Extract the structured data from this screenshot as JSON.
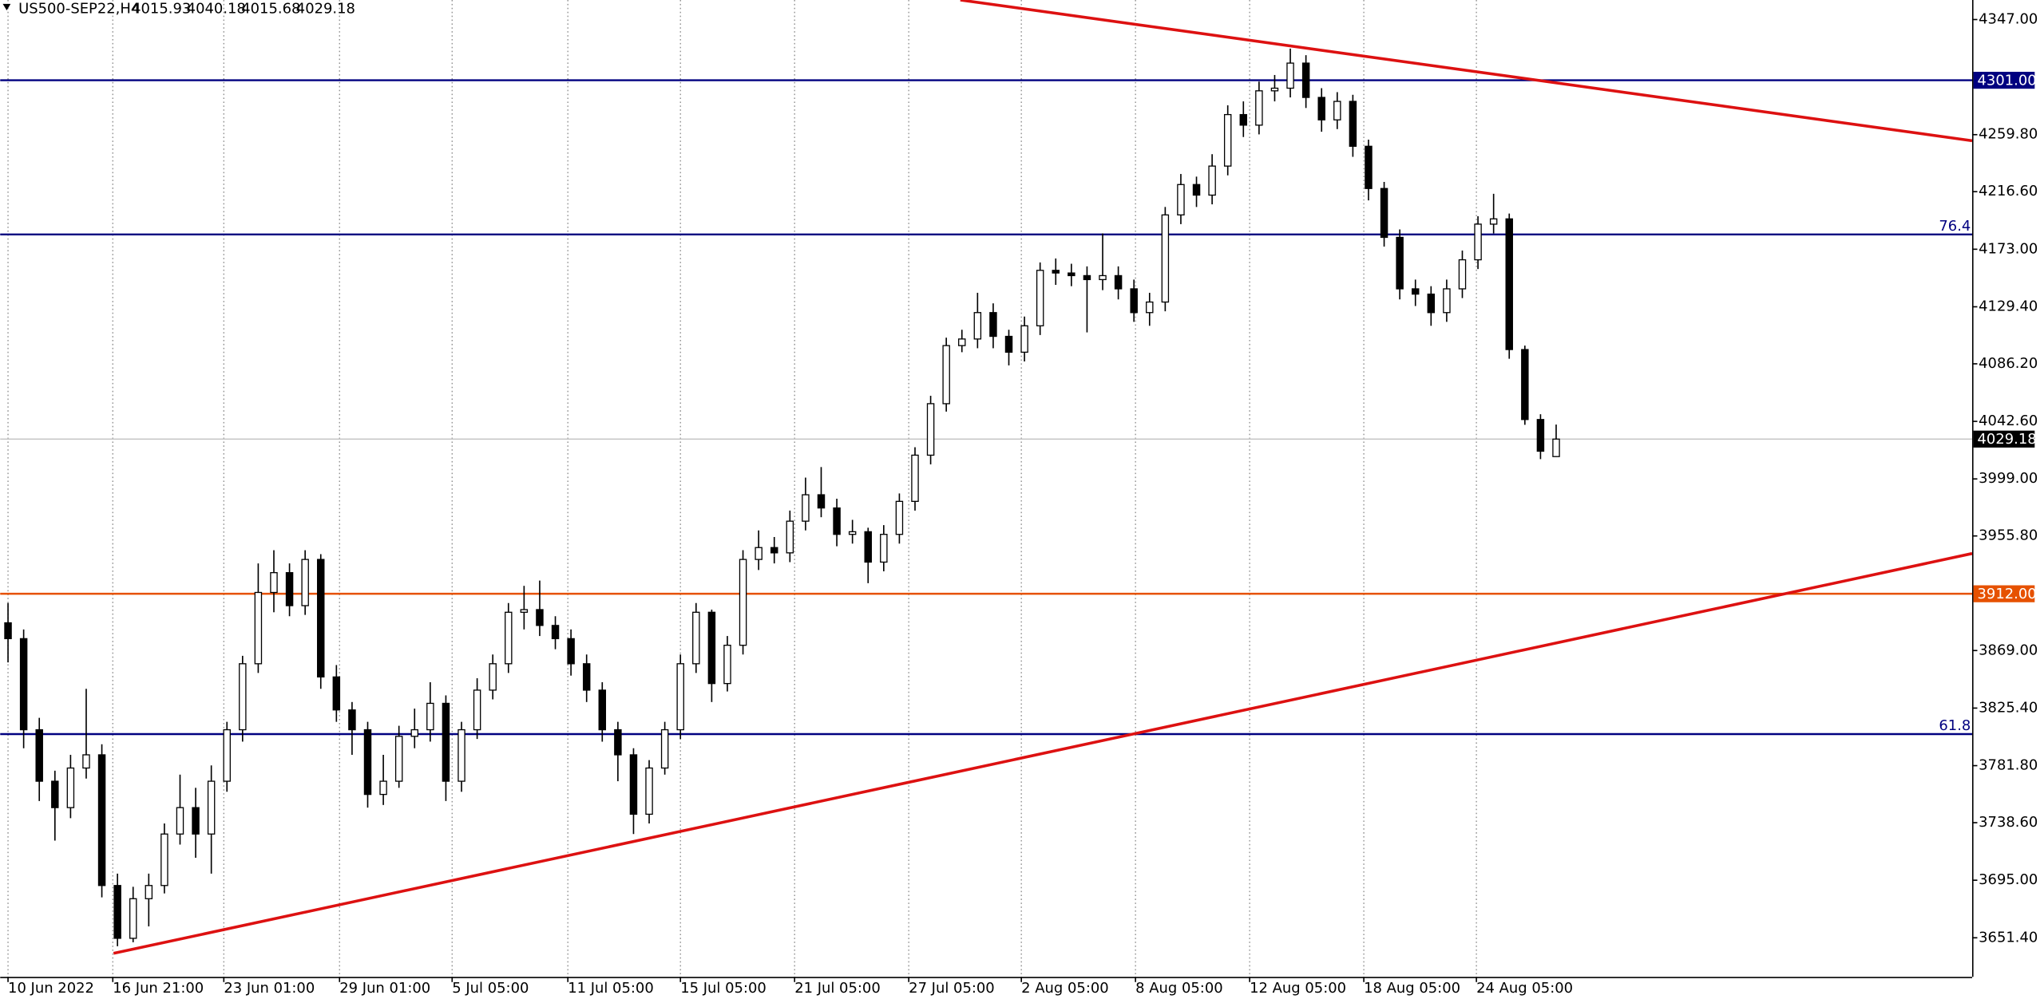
{
  "chart_data": {
    "type": "candlestick",
    "symbol": "US500-SEP22,H4",
    "open": [
      3890,
      3878,
      3809,
      3770,
      3750,
      3780,
      3790,
      3691,
      3651,
      3681,
      3691,
      3730,
      3750,
      3730,
      3770,
      3809,
      3859,
      3913,
      3928,
      3903,
      3938,
      3849,
      3824,
      3809,
      3760,
      3770,
      3804,
      3809,
      3829,
      3770,
      3809,
      3839,
      3859,
      3898,
      3900,
      3888,
      3878,
      3859,
      3839,
      3809,
      3790,
      3745,
      3780,
      3809,
      3859,
      3898,
      3844,
      3873,
      3938,
      3947,
      3943,
      3967,
      3987,
      3977,
      3957,
      3959,
      3936,
      3957,
      3982,
      4017,
      4056,
      4100,
      4105,
      4125,
      4107,
      4095,
      4115,
      4157,
      4155,
      4153,
      4150,
      4153,
      4143,
      4125,
      4133,
      4199,
      4222,
      4214,
      4236,
      4275,
      4267,
      4293,
      4295,
      4314,
      4288,
      4271,
      4285,
      4251,
      4219,
      4182,
      4143,
      4139,
      4125,
      4143,
      4165,
      4192,
      4196,
      4097,
      4044,
      4015.93
    ],
    "high": [
      3905,
      3885,
      3818,
      3778,
      3790,
      3840,
      3798,
      3700,
      3690,
      3700,
      3738,
      3775,
      3765,
      3782,
      3815,
      3865,
      3935,
      3945,
      3935,
      3945,
      3942,
      3858,
      3830,
      3815,
      3790,
      3812,
      3825,
      3845,
      3835,
      3815,
      3848,
      3866,
      3905,
      3918,
      3922,
      3895,
      3885,
      3866,
      3845,
      3815,
      3795,
      3786,
      3815,
      3866,
      3905,
      3900,
      3880,
      3945,
      3960,
      3955,
      3975,
      4000,
      4008,
      3984,
      3968,
      3962,
      3964,
      3988,
      4023,
      4062,
      4106,
      4112,
      4140,
      4132,
      4112,
      4122,
      4163,
      4166,
      4162,
      4160,
      4185,
      4160,
      4150,
      4140,
      4205,
      4230,
      4228,
      4245,
      4282,
      4285,
      4300,
      4305,
      4325,
      4320,
      4295,
      4292,
      4290,
      4256,
      4224,
      4188,
      4150,
      4145,
      4150,
      4172,
      4198,
      4215,
      4200,
      4100,
      4048,
      4040.18
    ],
    "low": [
      3860,
      3795,
      3755,
      3725,
      3742,
      3772,
      3682,
      3645,
      3648,
      3660,
      3685,
      3722,
      3712,
      3700,
      3762,
      3800,
      3852,
      3898,
      3895,
      3896,
      3840,
      3815,
      3790,
      3750,
      3752,
      3765,
      3795,
      3800,
      3755,
      3762,
      3802,
      3832,
      3852,
      3885,
      3880,
      3870,
      3850,
      3830,
      3800,
      3770,
      3730,
      3738,
      3775,
      3802,
      3852,
      3830,
      3838,
      3866,
      3930,
      3935,
      3936,
      3960,
      3970,
      3948,
      3950,
      3920,
      3929,
      3950,
      3975,
      4010,
      4050,
      4095,
      4098,
      4098,
      4085,
      4088,
      4108,
      4146,
      4145,
      4110,
      4142,
      4135,
      4118,
      4115,
      4126,
      4192,
      4205,
      4207,
      4229,
      4258,
      4260,
      4285,
      4288,
      4280,
      4262,
      4264,
      4243,
      4210,
      4175,
      4135,
      4130,
      4115,
      4118,
      4136,
      4158,
      4185,
      4090,
      4040,
      4014,
      4015.68
    ],
    "close": [
      3878,
      3809,
      3770,
      3750,
      3780,
      3790,
      3691,
      3651,
      3681,
      3691,
      3730,
      3750,
      3730,
      3770,
      3809,
      3859,
      3913,
      3928,
      3903,
      3938,
      3849,
      3824,
      3809,
      3760,
      3770,
      3804,
      3809,
      3829,
      3770,
      3809,
      3839,
      3859,
      3898,
      3900,
      3888,
      3878,
      3859,
      3839,
      3809,
      3790,
      3745,
      3780,
      3809,
      3859,
      3898,
      3844,
      3873,
      3938,
      3947,
      3943,
      3967,
      3987,
      3977,
      3957,
      3959,
      3936,
      3957,
      3982,
      4017,
      4056,
      4100,
      4105,
      4125,
      4107,
      4095,
      4115,
      4157,
      4155,
      4153,
      4150,
      4153,
      4143,
      4125,
      4133,
      4199,
      4222,
      4214,
      4236,
      4275,
      4267,
      4293,
      4295,
      4314,
      4288,
      4271,
      4285,
      4251,
      4219,
      4182,
      4143,
      4139,
      4125,
      4143,
      4165,
      4192,
      4196,
      4097,
      4044,
      4020,
      4029.18
    ],
    "xlim": [
      -0.5,
      125.6
    ],
    "xticks": [
      {
        "value": 0,
        "label": "10 Jun 2022"
      },
      {
        "value": 6.7,
        "label": "16 Jun 21:00"
      },
      {
        "value": 13.8,
        "label": "23 Jun 01:00"
      },
      {
        "value": 21.2,
        "label": "29 Jun 01:00"
      },
      {
        "value": 28.4,
        "label": "5 Jul 05:00"
      },
      {
        "value": 35.8,
        "label": "11 Jul 05:00"
      },
      {
        "value": 43,
        "label": "15 Jul 05:00"
      },
      {
        "value": 50.3,
        "label": "21 Jul 05:00"
      },
      {
        "value": 57.6,
        "label": "27 Jul 05:00"
      },
      {
        "value": 64.8,
        "label": "2 Aug 05:00"
      },
      {
        "value": 72.1,
        "label": "8 Aug 05:00"
      },
      {
        "value": 79.4,
        "label": "12 Aug 05:00"
      },
      {
        "value": 86.7,
        "label": "18 Aug 05:00"
      },
      {
        "value": 93.9,
        "label": "24 Aug 05:00"
      }
    ],
    "ylim": [
      3621.8,
      4361.8
    ],
    "yticks": [
      {
        "value": 4347,
        "label": "4347.00"
      },
      {
        "value": 4259.8,
        "label": "4259.80"
      },
      {
        "value": 4216.6,
        "label": "4216.60"
      },
      {
        "value": 4173,
        "label": "4173.00"
      },
      {
        "value": 4129.4,
        "label": "4129.40"
      },
      {
        "value": 4086.2,
        "label": "4086.20"
      },
      {
        "value": 4042.6,
        "label": "4042.60"
      },
      {
        "value": 3999,
        "label": "3999.00"
      },
      {
        "value": 3955.8,
        "label": "3955.80"
      },
      {
        "value": 3869,
        "label": "3869.00"
      },
      {
        "value": 3825.4,
        "label": "3825.40"
      },
      {
        "value": 3781.8,
        "label": "3781.80"
      },
      {
        "value": 3738.6,
        "label": "3738.60"
      },
      {
        "value": 3695,
        "label": "3695.00"
      },
      {
        "value": 3651.4,
        "label": "3651.40"
      }
    ],
    "grid": true,
    "levels": [
      {
        "value": 4301,
        "label": "4301.00",
        "style": "box",
        "color": "#000080"
      },
      {
        "value": 4184.2,
        "label": "76.4",
        "style": "text",
        "color": "#000080"
      },
      {
        "value": 3805.7,
        "label": "61.8",
        "style": "text",
        "color": "#000080"
      },
      {
        "value": 3912,
        "label": "3912.00",
        "style": "box",
        "color": "#e65100"
      }
    ],
    "current_price": {
      "value": 4029.18,
      "label": "4029.18"
    },
    "trendlines": [
      {
        "color": "#dd1111",
        "points": [
          [
            60.9,
            4361.8
          ],
          [
            125.6,
            4255.2
          ]
        ]
      },
      {
        "color": "#dd1111",
        "points": [
          [
            6.75,
            3639.6
          ],
          [
            125.6,
            3942.5
          ]
        ]
      }
    ]
  }
}
